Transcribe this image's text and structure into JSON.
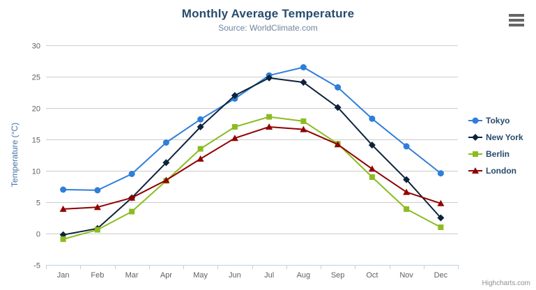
{
  "chart": {
    "credits": "Highcharts.com"
  },
  "icons": {
    "context_menu": "hamburger-icon"
  },
  "chart_data": {
    "type": "line",
    "title": "Monthly Average Temperature",
    "subtitle": "Source: WorldClimate.com",
    "categories": [
      "Jan",
      "Feb",
      "Mar",
      "Apr",
      "May",
      "Jun",
      "Jul",
      "Aug",
      "Sep",
      "Oct",
      "Nov",
      "Dec"
    ],
    "series": [
      {
        "name": "Tokyo",
        "color": "#2f7ed8",
        "marker": "circle",
        "values": [
          7.0,
          6.9,
          9.5,
          14.5,
          18.2,
          21.5,
          25.2,
          26.5,
          23.3,
          18.3,
          13.9,
          9.6
        ]
      },
      {
        "name": "New York",
        "color": "#0d233a",
        "marker": "diamond",
        "values": [
          -0.2,
          0.8,
          5.7,
          11.3,
          17.0,
          22.0,
          24.8,
          24.1,
          20.1,
          14.1,
          8.6,
          2.5
        ]
      },
      {
        "name": "Berlin",
        "color": "#8bbc21",
        "marker": "square",
        "values": [
          -0.9,
          0.6,
          3.5,
          8.4,
          13.5,
          17.0,
          18.6,
          17.9,
          14.3,
          9.0,
          3.9,
          1.0
        ]
      },
      {
        "name": "London",
        "color": "#910000",
        "marker": "triangle",
        "values": [
          3.9,
          4.2,
          5.7,
          8.5,
          11.9,
          15.2,
          17.0,
          16.6,
          14.2,
          10.3,
          6.6,
          4.8
        ]
      }
    ],
    "xlabel": "",
    "ylabel": "Temperature (°C)",
    "ylim": [
      -5,
      30
    ],
    "ytick_interval": 5,
    "grid": true,
    "legend_position": "right",
    "colors": {
      "grid_line": "#cccccc",
      "axis_line": "#c0d0e0",
      "axis_label": "#606060",
      "yaxis_title": "#4572a7",
      "title": "#274b6d",
      "subtitle": "#6d869f",
      "legend_text": "#274b6d",
      "credits_text": "#909090"
    }
  }
}
